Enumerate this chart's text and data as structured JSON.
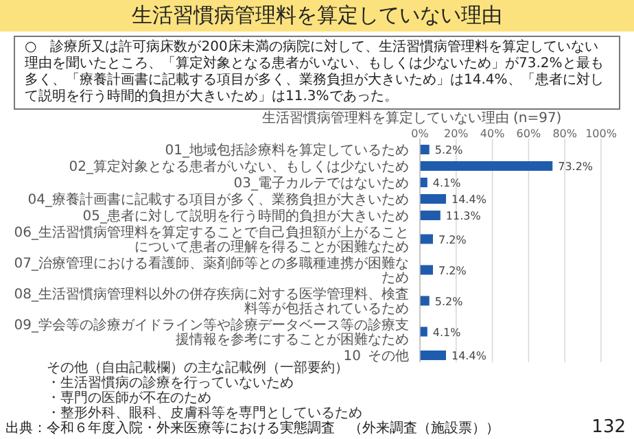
{
  "chart_data": {
    "type": "bar",
    "orientation": "horizontal",
    "title": "生活習慣病管理料を算定していない理由",
    "subtitle": "生活習慣病管理料を算定していない理由 (n=97)",
    "categories": [
      "01_地域包括診療料を算定しているため",
      "02_算定対象となる患者がいない、もしくは少ないため",
      "03_電子カルテではないため",
      "04_療養計画書に記載する項目が多く、業務負担が大きいため",
      "05_患者に対して説明を行う時間的負担が大きいため",
      "06_生活習慣病管理料を算定することで自己負担額が上がることについて患者の理解を得ることが困難なため",
      "07_治療管理における看護師、薬剤師等との多職種連携が困難なため",
      "08_生活習慣病管理料以外の併存疾病に対する医学管理料、検査料等が包括されているため",
      "09_学会等の診療ガイドライン等や診療データベース等の診療支援情報を参考にすることが困難なため",
      "10_その他"
    ],
    "values": [
      5.2,
      73.2,
      4.1,
      14.4,
      11.3,
      7.2,
      7.2,
      5.2,
      4.1,
      14.4
    ],
    "value_labels": [
      "5.2%",
      "73.2%",
      "4.1%",
      "14.4%",
      "11.3%",
      "7.2%",
      "7.2%",
      "5.2%",
      "4.1%",
      "14.4%"
    ],
    "color": "#1f5cae",
    "xlim": [
      0,
      100
    ],
    "xticks": [
      {
        "value": 0,
        "label": "0%"
      },
      {
        "value": 20,
        "label": "20%"
      },
      {
        "value": 40,
        "label": "40%"
      },
      {
        "value": 60,
        "label": "60%"
      },
      {
        "value": 80,
        "label": "80%"
      },
      {
        "value": 100,
        "label": "100%"
      }
    ],
    "grid": "x",
    "annotations": [
      "○　診療所又は許可病床数が200床未満の病院に対して、生活習慣病管理料を算定していない理由を聞いたところ、「算定対象となる患者がいない、もしくは少ないため」が73.2%と最も多く、「療養計画書に記載する項目が多く、業務負担が大きいため」は14.4%、「患者に対して説明を行う時間的負担が大きいため」は11.3%であった。",
      "その他（自由記載欄）の主な記載例（一部要約）",
      "・生活習慣病の診療を行っていないため",
      "・専門の医師が不在のため",
      "・整形外科、眼科、皮膚科等を専門としているため",
      "出典：令和６年度入院・外来医療等における実態調査　（外来調査（施設票））",
      "132"
    ]
  }
}
